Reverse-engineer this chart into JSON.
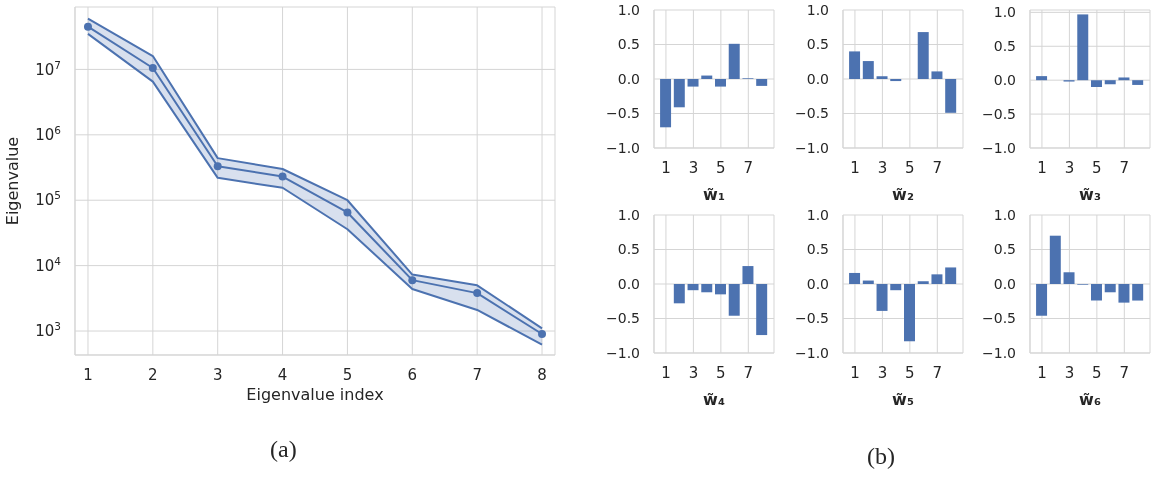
{
  "chart_data": [
    {
      "type": "line",
      "xlabel": "Eigenvalue index",
      "ylabel": "Eigenvalue",
      "log": "y",
      "grid": true,
      "marker": "circle",
      "line_style": "solid",
      "x": [
        1,
        2,
        3,
        4,
        5,
        6,
        7,
        8
      ],
      "xlim": [
        0.8,
        8.2
      ],
      "xticks": [
        1,
        2,
        3,
        4,
        5,
        6,
        7,
        8
      ],
      "ylim": [
        430,
        90000000
      ],
      "yticks": [
        {
          "value": 1000,
          "label": "10$^{3}$"
        },
        {
          "value": 10000,
          "label": "10$^{4}$"
        },
        {
          "value": 100000,
          "label": "10$^{5}$"
        },
        {
          "value": 1000000,
          "label": "10$^{6}$"
        },
        {
          "value": 10000000,
          "label": "10$^{7}$"
        }
      ],
      "annotations": [
        "(a)"
      ],
      "series": [
        {
          "color": "#4c72b0",
          "values": [
            45000000,
            10500000,
            330000,
            230000,
            65000,
            6000,
            3800,
            900
          ],
          "lower": [
            35000000,
            6500000,
            220000,
            155000,
            36000,
            4400,
            2100,
            620
          ],
          "upper": [
            60000000,
            16000000,
            440000,
            300000,
            100000,
            7300,
            5000,
            1100
          ]
        },
        {
          "color": "#4c72b0",
          "marker": "none",
          "values": [
            60000000,
            16000000,
            440000,
            300000,
            100000,
            7300,
            5000,
            1100
          ]
        },
        {
          "color": "#4c72b0",
          "marker": "none",
          "values": [
            35000000,
            6500000,
            220000,
            155000,
            36000,
            4400,
            2100,
            620
          ]
        }
      ]
    },
    {
      "type": "bar",
      "xlabel": "w̃₁",
      "grid": true,
      "color": "#4c72b0",
      "x": [
        1,
        2,
        3,
        4,
        5,
        6,
        7,
        8
      ],
      "xlim": [
        0.13,
        8.87
      ],
      "xticks": [
        1,
        3,
        5,
        7
      ],
      "ylim": [
        -1,
        1
      ],
      "yticks": [
        {
          "value": -1,
          "label": "−1.0"
        },
        {
          "value": -0.5,
          "label": "−0.5"
        },
        {
          "value": 0,
          "label": "0.0"
        },
        {
          "value": 0.5,
          "label": "0.5"
        },
        {
          "value": 1,
          "label": "1.0"
        }
      ],
      "values": [
        -0.7,
        -0.41,
        -0.11,
        0.05,
        -0.11,
        0.51,
        0.01,
        -0.1
      ]
    },
    {
      "type": "bar",
      "xlabel": "w̃₂",
      "grid": true,
      "color": "#4c72b0",
      "x": [
        1,
        2,
        3,
        4,
        5,
        6,
        7,
        8
      ],
      "xlim": [
        0.13,
        8.87
      ],
      "xticks": [
        1,
        3,
        5,
        7
      ],
      "ylim": [
        -1,
        1
      ],
      "yticks": [
        {
          "value": -1,
          "label": "−1.0"
        },
        {
          "value": -0.5,
          "label": "−0.5"
        },
        {
          "value": 0,
          "label": "0.0"
        },
        {
          "value": 0.5,
          "label": "0.5"
        },
        {
          "value": 1,
          "label": "1.0"
        }
      ],
      "values": [
        0.4,
        0.26,
        0.04,
        -0.03,
        0,
        0.68,
        0.11,
        -0.49
      ]
    },
    {
      "type": "bar",
      "xlabel": "w̃₃",
      "grid": true,
      "color": "#4c72b0",
      "x": [
        1,
        2,
        3,
        4,
        5,
        6,
        7,
        8
      ],
      "xlim": [
        0.13,
        8.87
      ],
      "xticks": [
        1,
        3,
        5,
        7
      ],
      "ylim": [
        -1,
        1.035
      ],
      "yticks": [
        {
          "value": -1,
          "label": "−1.0"
        },
        {
          "value": -0.5,
          "label": "−0.5"
        },
        {
          "value": 0,
          "label": "0.0"
        },
        {
          "value": 0.5,
          "label": "0.5"
        },
        {
          "value": 1,
          "label": "1.0"
        }
      ],
      "values": [
        0.06,
        0,
        -0.02,
        0.97,
        -0.1,
        -0.06,
        0.04,
        -0.07
      ]
    },
    {
      "type": "bar",
      "xlabel": "w̃₄",
      "grid": true,
      "color": "#4c72b0",
      "x": [
        1,
        2,
        3,
        4,
        5,
        6,
        7,
        8
      ],
      "xlim": [
        0.13,
        8.87
      ],
      "xticks": [
        1,
        3,
        5,
        7
      ],
      "ylim": [
        -1,
        1
      ],
      "yticks": [
        {
          "value": -1,
          "label": "−1.0"
        },
        {
          "value": -0.5,
          "label": "−0.5"
        },
        {
          "value": 0,
          "label": "0.0"
        },
        {
          "value": 0.5,
          "label": "0.5"
        },
        {
          "value": 1,
          "label": "1.0"
        }
      ],
      "values": [
        0,
        -0.28,
        -0.09,
        -0.12,
        -0.15,
        -0.46,
        0.26,
        -0.74
      ]
    },
    {
      "type": "bar",
      "xlabel": "w̃₅",
      "grid": true,
      "color": "#4c72b0",
      "x": [
        1,
        2,
        3,
        4,
        5,
        6,
        7,
        8
      ],
      "xlim": [
        0.13,
        8.87
      ],
      "xticks": [
        1,
        3,
        5,
        7
      ],
      "ylim": [
        -1,
        1
      ],
      "yticks": [
        {
          "value": -1,
          "label": "−1.0"
        },
        {
          "value": -0.5,
          "label": "−0.5"
        },
        {
          "value": 0,
          "label": "0.0"
        },
        {
          "value": 0.5,
          "label": "0.5"
        },
        {
          "value": 1,
          "label": "1.0"
        }
      ],
      "values": [
        0.16,
        0.05,
        -0.39,
        -0.09,
        -0.83,
        0.04,
        0.14,
        0.24
      ],
      "annotations": [
        "(b)"
      ]
    },
    {
      "type": "bar",
      "xlabel": "w̃₆",
      "grid": true,
      "color": "#4c72b0",
      "x": [
        1,
        2,
        3,
        4,
        5,
        6,
        7,
        8
      ],
      "xlim": [
        0.13,
        8.87
      ],
      "xticks": [
        1,
        3,
        5,
        7
      ],
      "ylim": [
        -1,
        1
      ],
      "yticks": [
        {
          "value": -1,
          "label": "−1.0"
        },
        {
          "value": -0.5,
          "label": "−0.5"
        },
        {
          "value": 0,
          "label": "0.0"
        },
        {
          "value": 0.5,
          "label": "0.5"
        },
        {
          "value": 1,
          "label": "1.0"
        }
      ],
      "values": [
        -0.46,
        0.7,
        0.17,
        -0.01,
        -0.24,
        -0.12,
        -0.27,
        -0.24
      ]
    }
  ]
}
